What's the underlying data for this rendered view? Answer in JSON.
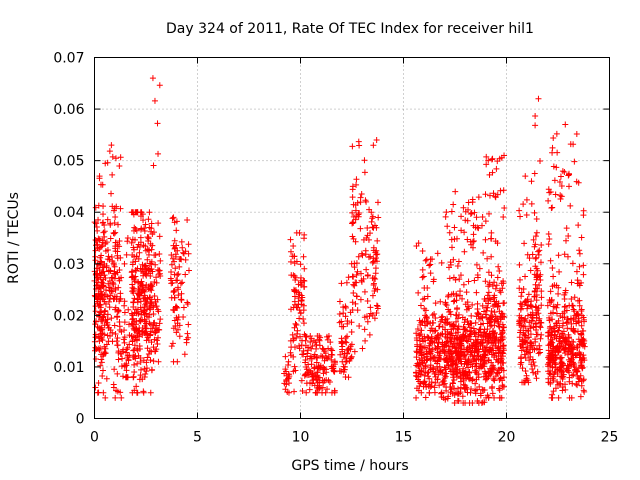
{
  "chart_data": {
    "type": "scatter",
    "title": "Day 324 of 2011, Rate Of TEC Index for receiver hil1",
    "xlabel": "GPS time / hours",
    "ylabel": "ROTI / TECUs",
    "xlim": [
      0,
      25
    ],
    "ylim": [
      0,
      0.07
    ],
    "x_ticks": [
      "0",
      "5",
      "10",
      "15",
      "20",
      "25"
    ],
    "x_tick_values": [
      0,
      5,
      10,
      15,
      20,
      25
    ],
    "y_ticks": [
      "0",
      "0.01",
      "0.02",
      "0.03",
      "0.04",
      "0.05",
      "0.06",
      "0.07"
    ],
    "y_tick_values": [
      0,
      0.01,
      0.02,
      0.03,
      0.04,
      0.05,
      0.06,
      0.07
    ],
    "grid": true,
    "marker": "plus",
    "color": "#ff0000",
    "series": [
      {
        "name": "ROTI",
        "clusters": [
          {
            "t_start": 0.0,
            "t_end": 0.5,
            "y_min": 0.005,
            "y_max": 0.047,
            "center": 0.022,
            "count": 170
          },
          {
            "t_start": 0.5,
            "t_end": 1.3,
            "y_min": 0.004,
            "y_max": 0.053,
            "center": 0.024,
            "count": 150
          },
          {
            "t_start": 1.3,
            "t_end": 1.7,
            "y_min": 0.008,
            "y_max": 0.035,
            "center": 0.014,
            "count": 40
          },
          {
            "t_start": 1.8,
            "t_end": 2.8,
            "y_min": 0.005,
            "y_max": 0.04,
            "center": 0.024,
            "count": 300
          },
          {
            "t_start": 2.8,
            "t_end": 3.2,
            "y_min": 0.011,
            "y_max": 0.066,
            "center": 0.024,
            "count": 60
          },
          {
            "t_start": 3.7,
            "t_end": 4.6,
            "y_min": 0.011,
            "y_max": 0.039,
            "center": 0.024,
            "count": 90
          },
          {
            "t_start": 9.2,
            "t_end": 9.5,
            "y_min": 0.005,
            "y_max": 0.012,
            "center": 0.007,
            "count": 20
          },
          {
            "t_start": 9.5,
            "t_end": 10.2,
            "y_min": 0.005,
            "y_max": 0.036,
            "center": 0.02,
            "count": 90
          },
          {
            "t_start": 10.2,
            "t_end": 11.7,
            "y_min": 0.005,
            "y_max": 0.016,
            "center": 0.01,
            "count": 140
          },
          {
            "t_start": 11.9,
            "t_end": 12.5,
            "y_min": 0.008,
            "y_max": 0.03,
            "center": 0.014,
            "count": 60
          },
          {
            "t_start": 12.5,
            "t_end": 13.8,
            "y_min": 0.012,
            "y_max": 0.054,
            "center": 0.03,
            "count": 130
          },
          {
            "t_start": 15.6,
            "t_end": 17.0,
            "y_min": 0.004,
            "y_max": 0.034,
            "center": 0.012,
            "count": 260
          },
          {
            "t_start": 17.0,
            "t_end": 19.0,
            "y_min": 0.003,
            "y_max": 0.044,
            "center": 0.013,
            "count": 520
          },
          {
            "t_start": 19.0,
            "t_end": 19.9,
            "y_min": 0.004,
            "y_max": 0.051,
            "center": 0.015,
            "count": 260
          },
          {
            "t_start": 20.6,
            "t_end": 21.3,
            "y_min": 0.007,
            "y_max": 0.047,
            "center": 0.017,
            "count": 130
          },
          {
            "t_start": 21.3,
            "t_end": 21.7,
            "y_min": 0.006,
            "y_max": 0.062,
            "center": 0.022,
            "count": 80
          },
          {
            "t_start": 22.0,
            "t_end": 23.8,
            "y_min": 0.004,
            "y_max": 0.057,
            "center": 0.014,
            "count": 430
          }
        ]
      }
    ]
  }
}
